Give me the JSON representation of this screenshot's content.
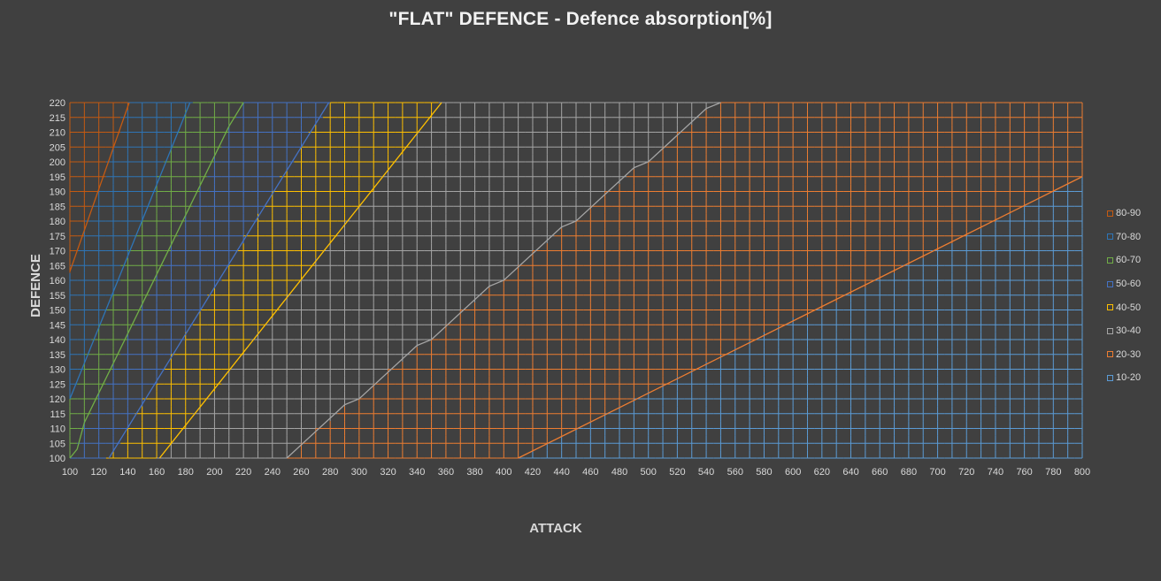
{
  "chart_data": {
    "type": "area",
    "title": "\"FLAT\" DEFENCE - Defence absorption[%]",
    "xlabel": "ATTACK",
    "ylabel": "DEFENCE",
    "xlim": [
      100,
      800
    ],
    "ylim": [
      100,
      220
    ],
    "x_ticks": [
      100,
      120,
      140,
      160,
      180,
      200,
      220,
      240,
      260,
      280,
      300,
      320,
      340,
      360,
      380,
      400,
      420,
      440,
      460,
      480,
      500,
      520,
      540,
      560,
      580,
      600,
      620,
      640,
      660,
      680,
      700,
      720,
      740,
      760,
      780,
      800
    ],
    "y_ticks": [
      100,
      105,
      110,
      115,
      120,
      125,
      130,
      135,
      140,
      145,
      150,
      155,
      160,
      165,
      170,
      175,
      180,
      185,
      190,
      195,
      200,
      205,
      210,
      215,
      220
    ],
    "grid_x_step": 10,
    "grid_y_step": 5,
    "legend_position": "right",
    "series": [
      {
        "name": "80-90",
        "color": "#c55a11",
        "boundary": [
          [
            100,
            163
          ],
          [
            141,
            220
          ]
        ]
      },
      {
        "name": "70-80",
        "color": "#2e75b6",
        "boundary": [
          [
            100,
            120
          ],
          [
            183,
            220
          ]
        ]
      },
      {
        "name": "60-70",
        "color": "#70ad47",
        "boundary": [
          [
            100,
            100
          ],
          [
            105,
            103
          ],
          [
            110,
            112
          ],
          [
            120,
            122
          ],
          [
            130,
            132
          ],
          [
            140,
            142
          ],
          [
            150,
            152
          ],
          [
            160,
            162
          ],
          [
            170,
            172
          ],
          [
            180,
            182
          ],
          [
            190,
            192
          ],
          [
            200,
            202
          ],
          [
            210,
            212
          ],
          [
            220,
            220
          ]
        ]
      },
      {
        "name": "50-60",
        "color": "#4472c4",
        "boundary": [
          [
            127,
            100
          ],
          [
            279,
            220
          ]
        ]
      },
      {
        "name": "40-50",
        "color": "#ffc000",
        "boundary": [
          [
            162,
            100
          ],
          [
            357,
            220
          ]
        ]
      },
      {
        "name": "30-40",
        "color": "#a5a5a5",
        "boundary": [
          [
            250,
            100
          ],
          [
            290,
            118
          ],
          [
            300,
            120
          ],
          [
            340,
            138
          ],
          [
            350,
            140
          ],
          [
            390,
            158
          ],
          [
            400,
            160
          ],
          [
            440,
            178
          ],
          [
            450,
            180
          ],
          [
            490,
            198
          ],
          [
            500,
            200
          ],
          [
            540,
            218
          ],
          [
            550,
            220
          ]
        ]
      },
      {
        "name": "20-30",
        "color": "#ed7d31",
        "boundary": [
          [
            410,
            100
          ],
          [
            800,
            195
          ]
        ]
      },
      {
        "name": "10-20",
        "color": "#5b9bd5",
        "boundary": []
      }
    ]
  }
}
